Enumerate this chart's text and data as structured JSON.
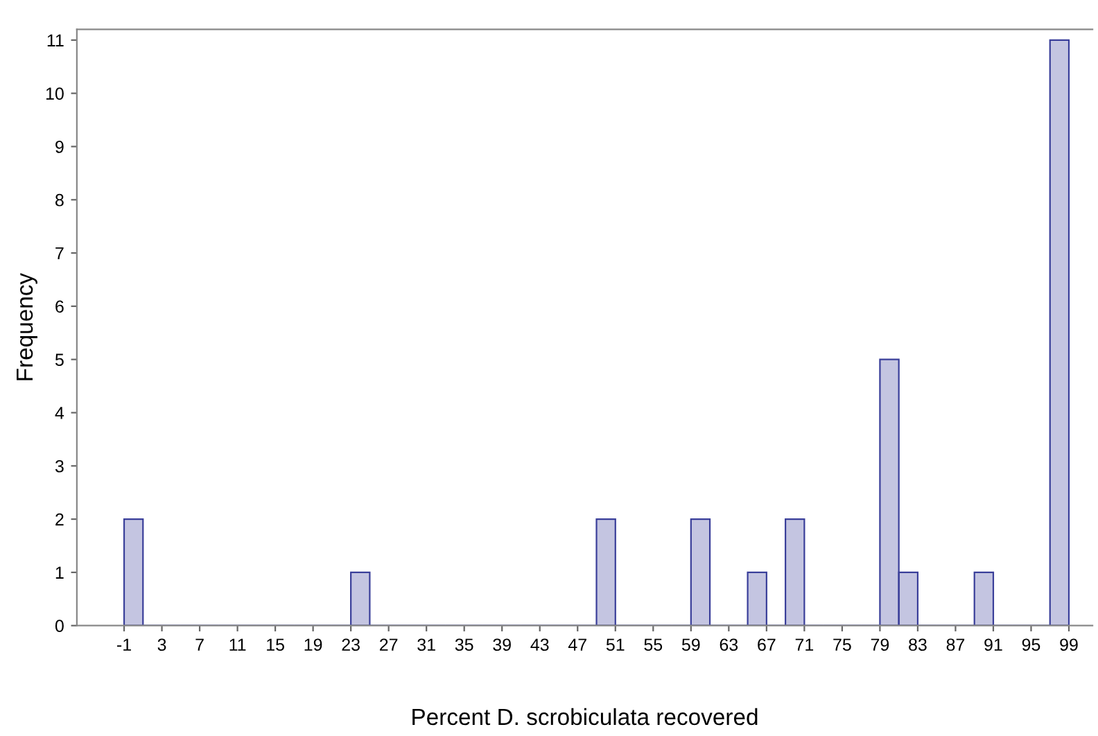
{
  "chart_data": {
    "type": "histogram",
    "xlabel": "Percent D. scrobiculata recovered",
    "ylabel": "Frequency",
    "bins": [
      -1,
      1,
      3,
      5,
      7,
      9,
      11,
      13,
      15,
      17,
      19,
      21,
      23,
      25,
      27,
      29,
      31,
      33,
      35,
      37,
      39,
      41,
      43,
      45,
      47,
      49,
      51,
      53,
      55,
      57,
      59,
      61,
      63,
      65,
      67,
      69,
      71,
      73,
      75,
      77,
      79,
      81,
      83,
      85,
      87,
      89,
      91,
      93,
      95,
      97,
      99
    ],
    "values": [
      2,
      0,
      0,
      0,
      0,
      0,
      0,
      0,
      0,
      0,
      0,
      0,
      1,
      0,
      0,
      0,
      0,
      0,
      0,
      0,
      0,
      0,
      0,
      0,
      0,
      2,
      0,
      0,
      0,
      0,
      2,
      0,
      0,
      1,
      0,
      2,
      0,
      0,
      0,
      0,
      5,
      1,
      0,
      0,
      0,
      1,
      0,
      0,
      0,
      11
    ],
    "color": "#3a3f9a",
    "xlim": [
      -6,
      101.5
    ],
    "xticks": [
      -1,
      3,
      7,
      11,
      15,
      19,
      23,
      27,
      31,
      35,
      39,
      43,
      47,
      51,
      55,
      59,
      63,
      67,
      71,
      75,
      79,
      83,
      87,
      91,
      95,
      99
    ],
    "ylim": [
      0,
      11.2
    ],
    "yticks": [
      0,
      1,
      2,
      3,
      4,
      5,
      6,
      7,
      8,
      9,
      10,
      11
    ],
    "grid": false
  }
}
